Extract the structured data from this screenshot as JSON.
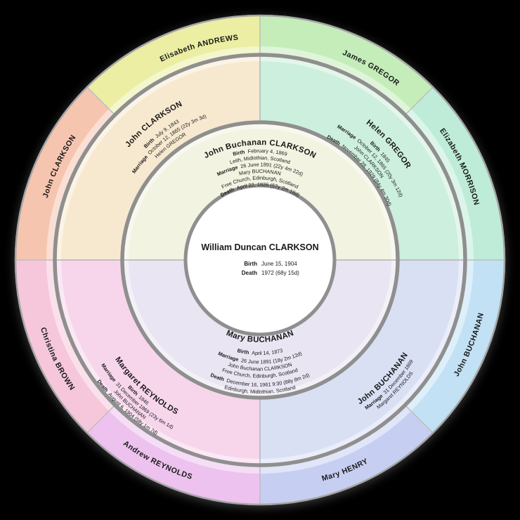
{
  "colors": {
    "background": "#000000",
    "separator": "#8f8f8f",
    "divider_inner": "#a8a8a8",
    "divider_outer": "#bdbdbd",
    "outer_rim": "#a4a4a4",
    "center_fill": "#ffffff",
    "text": "#1a1a1a"
  },
  "center": {
    "name": "William Duncan CLARKSON",
    "events": [
      {
        "label": "Birth",
        "value": "June 15, 1904"
      },
      {
        "label": "Death",
        "value": "1972 (68y 15d)"
      }
    ]
  },
  "generation1": [
    {
      "position": "top",
      "name": "John Buchanan CLARKSON",
      "fill": "#f2f3e1",
      "lines": [
        {
          "label": "Birth",
          "value": "February 4, 1869"
        },
        {
          "value": "Leith, Midlothian, Scotland"
        },
        {
          "label": "Marriage",
          "value": "26 June 1891 (22y 4m 22d)"
        },
        {
          "value": "Mary BUCHANAN"
        },
        {
          "value": "Free Church, Edinburgh, Scotland"
        },
        {
          "label": "Death",
          "value": "April 22, 1926 (57y 2m 18d)"
        }
      ]
    },
    {
      "position": "bottom",
      "name": "Mary BUCHANAN",
      "fill": "#eae5f2",
      "lines": [
        {
          "label": "Birth",
          "value": "April 14, 1873"
        },
        {
          "label": "Marriage",
          "value": "26 June 1891 (18y 2m 12d)"
        },
        {
          "value": "John Buchanan CLARKSON"
        },
        {
          "value": "Free Church, Edinburgh, Scotland"
        },
        {
          "label": "Death",
          "value": "December 16, 1961 9:30 (88y 8m 2d)"
        },
        {
          "value": "Edinburgh, Midlothian, Scotland"
        }
      ]
    }
  ],
  "generation2": [
    {
      "position": "top-left",
      "name": "John CLARKSON",
      "fill": "#f7e9cf",
      "lines": [
        {
          "label": "Birth",
          "value": "July 9, 1843"
        },
        {
          "label": "Marriage",
          "value": "October 12, 1865 (22y 3m 3d)"
        },
        {
          "value": "Helen GREGOR"
        }
      ]
    },
    {
      "position": "top-right",
      "name": "Helen GREGOR",
      "fill": "#cdefdd",
      "lines": [
        {
          "label": "Birth",
          "value": "1845"
        },
        {
          "label": "Marriage",
          "value": "October 12, 1865 (20y 3m 12d)"
        },
        {
          "value": "John CLARKSON"
        },
        {
          "label": "Death",
          "value": "November 28, 1929 (84y 4m 30d)"
        }
      ]
    },
    {
      "position": "bottom-left",
      "name": "Margaret REYNOLDS",
      "fill": "#f7d6ec",
      "lines": [
        {
          "label": "Birth",
          "value": "1846"
        },
        {
          "label": "Marriage",
          "value": "31 December 1869 (23y 6m 1d)"
        },
        {
          "value": "John BUCHANAN"
        },
        {
          "label": "Death",
          "value": "August 6, 1904 (58y 1m 7d)"
        }
      ]
    },
    {
      "position": "bottom-right",
      "name": "John BUCHANAN",
      "fill": "#dae0f4",
      "lines": [
        {
          "label": "Marriage",
          "value": "31 December 1869"
        },
        {
          "value": "Margaret REYNOLDS"
        }
      ]
    }
  ],
  "generation3": [
    {
      "position": "left-upper",
      "name": "John CLARKSON",
      "fill": "#f6c5b0"
    },
    {
      "position": "top-left",
      "name": "Elisabeth ANDREWS",
      "fill": "#ebeea3"
    },
    {
      "position": "top-right",
      "name": "James GREGOR",
      "fill": "#c4edba"
    },
    {
      "position": "right-upper",
      "name": "Elizabeth MORRISON",
      "fill": "#beecd8"
    },
    {
      "position": "right-lower",
      "name": "John BUCHANAN",
      "fill": "#c2e1f4"
    },
    {
      "position": "bottom-right",
      "name": "Mary HENRY",
      "fill": "#c6cff2"
    },
    {
      "position": "bottom-left",
      "name": "Andrew REYNOLDS",
      "fill": "#edc2ee"
    },
    {
      "position": "left-lower",
      "name": "Christina BROWN",
      "fill": "#f6c7db"
    }
  ]
}
